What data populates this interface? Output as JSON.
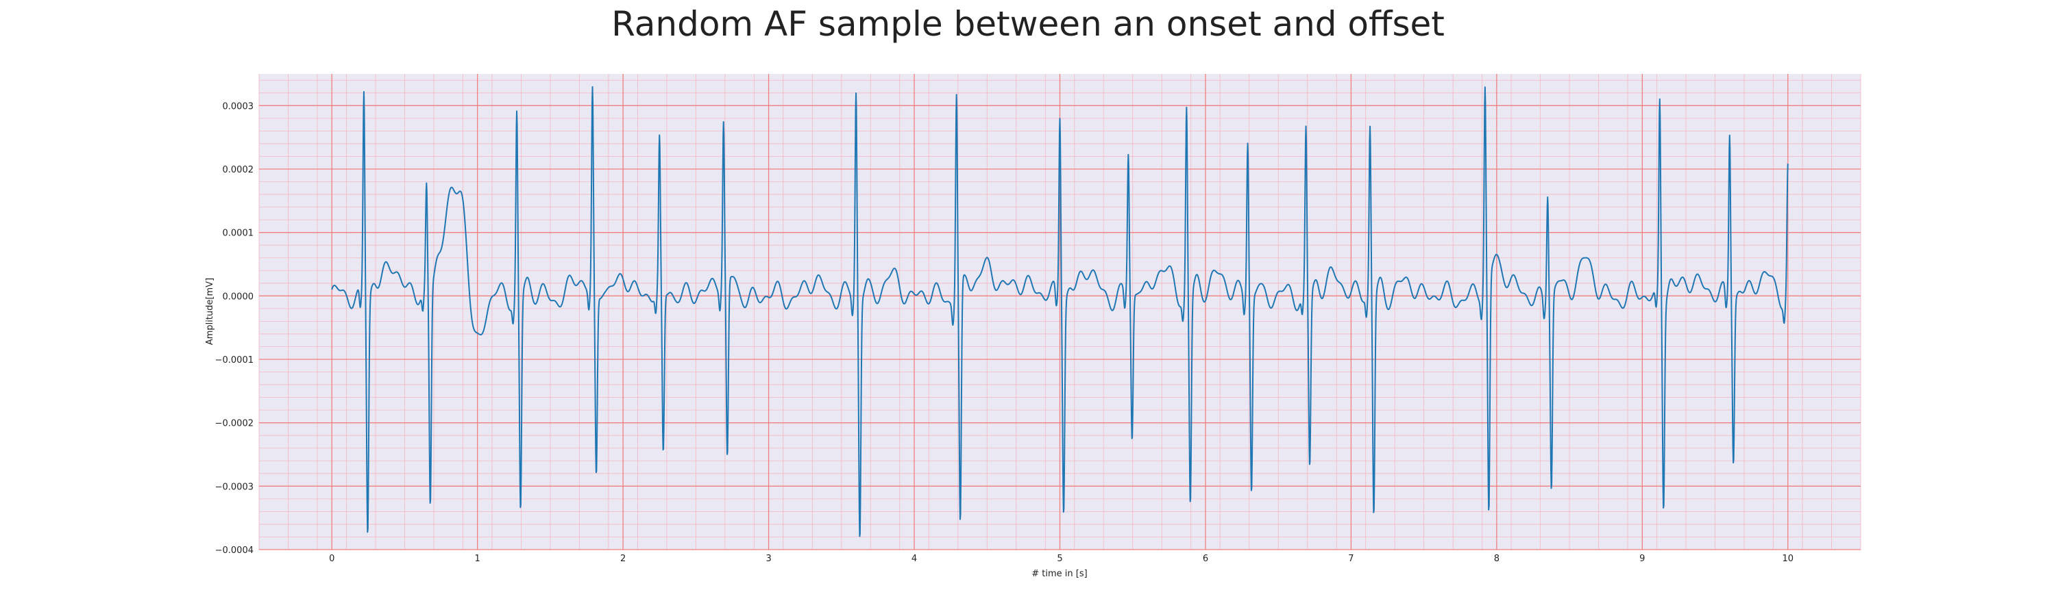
{
  "chart_data": {
    "type": "line",
    "title": "Random AF sample between an onset and offset",
    "xlabel": "# time in [s]",
    "ylabel": "Amplitude[mV]",
    "xlim": [
      -0.5,
      10.5
    ],
    "ylim": [
      -0.0004,
      0.00035
    ],
    "xticks": [
      0,
      1,
      2,
      3,
      4,
      5,
      6,
      7,
      8,
      9,
      10
    ],
    "yticks": [
      -0.0004,
      -0.0003,
      -0.0002,
      -0.0001,
      0.0,
      0.0001,
      0.0002,
      0.0003
    ],
    "ytick_labels": [
      "−0.0004",
      "−0.0003",
      "−0.0002",
      "−0.0001",
      "0.0000",
      "0.0001",
      "0.0002",
      "0.0003"
    ],
    "grid": true,
    "colors": {
      "series": "#1f77b4",
      "major_grid": "#f08080",
      "minor_grid": "#f4b7c4",
      "background": "#eae8f2"
    },
    "series": [
      {
        "beats": [
          {
            "t": 0.22,
            "peak": 0.000325,
            "trough": -0.00037
          },
          {
            "t": 0.65,
            "peak": 0.000165,
            "trough": -0.00034
          },
          {
            "t": 1.27,
            "peak": 0.00029,
            "trough": -0.00034
          },
          {
            "t": 1.79,
            "peak": 0.000315,
            "trough": -0.00029
          },
          {
            "t": 2.25,
            "peak": 0.000232,
            "trough": -0.00026
          },
          {
            "t": 2.69,
            "peak": 0.000253,
            "trough": -0.000285
          },
          {
            "t": 3.6,
            "peak": 0.00032,
            "trough": -0.000378
          },
          {
            "t": 4.29,
            "peak": 0.000325,
            "trough": -0.000375
          },
          {
            "t": 5.0,
            "peak": 0.00029,
            "trough": -0.00033
          },
          {
            "t": 5.47,
            "peak": 0.000218,
            "trough": -0.000232
          },
          {
            "t": 5.87,
            "peak": 0.000298,
            "trough": -0.000328
          },
          {
            "t": 6.29,
            "peak": 0.000243,
            "trough": -0.00031
          },
          {
            "t": 6.69,
            "peak": 0.000262,
            "trough": -0.00027
          },
          {
            "t": 7.13,
            "peak": 0.000265,
            "trough": -0.000345
          },
          {
            "t": 7.92,
            "peak": 0.000315,
            "trough": -0.000375
          },
          {
            "t": 8.35,
            "peak": 0.00017,
            "trough": -0.000305
          },
          {
            "t": 9.12,
            "peak": 0.00031,
            "trough": -0.00032
          },
          {
            "t": 9.6,
            "peak": 0.000263,
            "trough": -0.000255
          },
          {
            "t": 10.0,
            "peak": 0.000198,
            "trough": -3e-05
          }
        ],
        "baseline_features": [
          {
            "t": 0.42,
            "amp": 5.5e-05,
            "width": 0.05
          },
          {
            "t": 0.8,
            "amp": 0.00014,
            "width": 0.05
          },
          {
            "t": 0.9,
            "amp": 0.000155,
            "width": 0.04
          },
          {
            "t": 0.98,
            "amp": -8.5e-05,
            "width": 0.05
          },
          {
            "t": 1.7,
            "amp": 2.5e-05,
            "width": 0.05
          },
          {
            "t": 2.02,
            "amp": 3e-05,
            "width": 0.05
          },
          {
            "t": 2.65,
            "amp": 3e-05,
            "width": 0.05
          },
          {
            "t": 3.32,
            "amp": 2e-05,
            "width": 0.06
          },
          {
            "t": 3.85,
            "amp": 2.5e-05,
            "width": 0.06
          },
          {
            "t": 4.5,
            "amp": 5e-05,
            "width": 0.06
          },
          {
            "t": 4.75,
            "amp": 2.5e-05,
            "width": 0.06
          },
          {
            "t": 5.2,
            "amp": 4e-05,
            "width": 0.05
          },
          {
            "t": 5.7,
            "amp": 4e-05,
            "width": 0.06
          },
          {
            "t": 6.1,
            "amp": 3.8e-05,
            "width": 0.05
          },
          {
            "t": 6.9,
            "amp": 3.5e-05,
            "width": 0.05
          },
          {
            "t": 7.4,
            "amp": 2e-05,
            "width": 0.06
          },
          {
            "t": 8.02,
            "amp": 4.8e-05,
            "width": 0.06
          },
          {
            "t": 8.6,
            "amp": 6e-05,
            "width": 0.05
          },
          {
            "t": 9.35,
            "amp": 3e-05,
            "width": 0.06
          },
          {
            "t": 9.85,
            "amp": 3.5e-05,
            "width": 0.05
          }
        ]
      }
    ]
  }
}
